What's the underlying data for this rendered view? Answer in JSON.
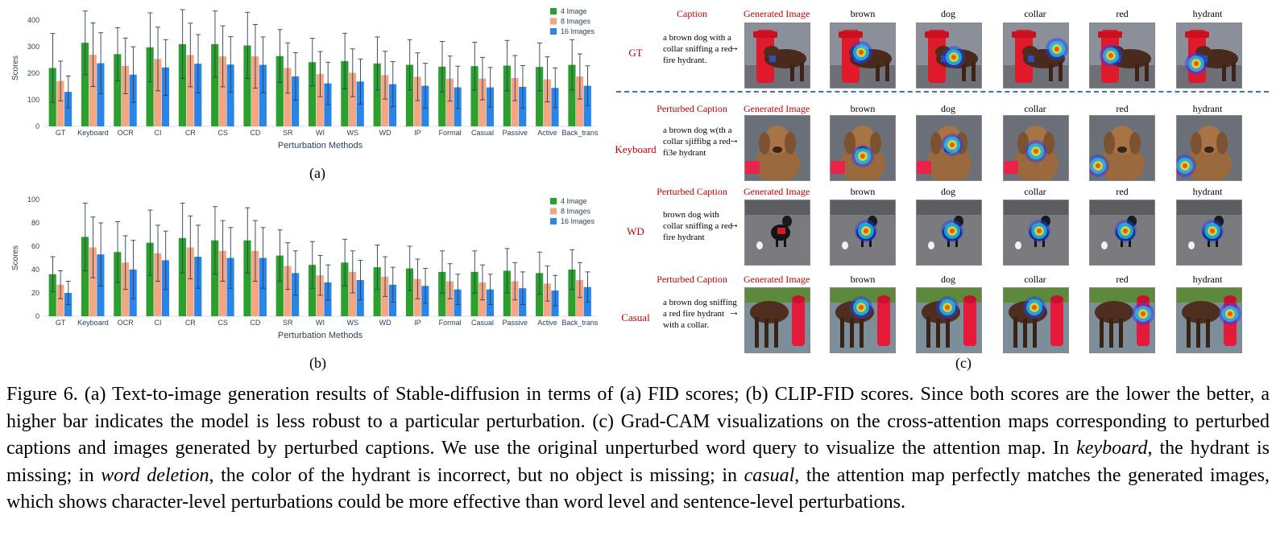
{
  "chart_data": [
    {
      "type": "bar",
      "title": "",
      "xlabel": "Perturbation Methods",
      "ylabel": "Scores",
      "ylim": [
        0,
        440
      ],
      "yticks": [
        0,
        100,
        200,
        300,
        400
      ],
      "grid": false,
      "legend": "top-right",
      "categories": [
        "GT",
        "Keyboard",
        "OCR",
        "CI",
        "CR",
        "CS",
        "CD",
        "SR",
        "WI",
        "WS",
        "WD",
        "IP",
        "Formal",
        "Casual",
        "Passive",
        "Active",
        "Back_trans"
      ],
      "series": [
        {
          "name": "4 Image",
          "color": "#2ca02c",
          "values": [
            220,
            315,
            272,
            298,
            310,
            310,
            305,
            265,
            242,
            246,
            237,
            232,
            225,
            227,
            229,
            224,
            232
          ],
          "errors": [
            130,
            120,
            100,
            130,
            130,
            125,
            125,
            100,
            90,
            105,
            100,
            95,
            95,
            90,
            95,
            90,
            95
          ]
        },
        {
          "name": "8 Images",
          "color": "#f4a582",
          "values": [
            171,
            270,
            228,
            254,
            269,
            264,
            264,
            220,
            197,
            202,
            193,
            187,
            180,
            180,
            182,
            177,
            188
          ],
          "errors": [
            75,
            120,
            105,
            120,
            120,
            115,
            120,
            95,
            85,
            90,
            90,
            90,
            85,
            80,
            85,
            85,
            85
          ]
        },
        {
          "name": "16 Images",
          "color": "#2a85e8",
          "values": [
            130,
            238,
            195,
            222,
            236,
            233,
            232,
            188,
            162,
            169,
            159,
            153,
            147,
            147,
            149,
            145,
            153
          ],
          "errors": [
            60,
            115,
            105,
            105,
            110,
            105,
            105,
            90,
            80,
            85,
            85,
            85,
            80,
            75,
            80,
            75,
            75
          ]
        }
      ]
    },
    {
      "type": "bar",
      "title": "",
      "xlabel": "Perturbation Methods",
      "ylabel": "Scores",
      "ylim": [
        0,
        100
      ],
      "yticks": [
        0,
        20,
        40,
        60,
        80,
        100
      ],
      "grid": false,
      "legend": "top-right",
      "categories": [
        "GT",
        "Keyboard",
        "OCR",
        "CI",
        "CR",
        "CS",
        "CD",
        "SR",
        "WI",
        "WS",
        "WD",
        "IP",
        "Formal",
        "Casual",
        "Passive",
        "Active",
        "Back_trans"
      ],
      "series": [
        {
          "name": "4 Image",
          "color": "#2ca02c",
          "values": [
            36,
            68,
            55,
            63,
            67,
            65,
            65,
            52,
            44,
            46,
            42,
            41,
            38,
            38,
            39,
            37,
            40
          ],
          "errors": [
            15,
            29,
            26,
            28,
            30,
            29,
            28,
            22,
            20,
            20,
            19,
            19,
            18,
            18,
            19,
            18,
            17
          ]
        },
        {
          "name": "8 Images",
          "color": "#f4a582",
          "values": [
            27,
            59,
            46,
            54,
            59,
            56,
            56,
            43,
            35,
            38,
            34,
            32,
            30,
            29,
            30,
            28,
            31
          ],
          "errors": [
            12,
            26,
            23,
            24,
            27,
            26,
            26,
            20,
            17,
            18,
            17,
            17,
            15,
            15,
            16,
            15,
            15
          ]
        },
        {
          "name": "16 Images",
          "color": "#2a85e8",
          "values": [
            20,
            53,
            40,
            48,
            51,
            50,
            50,
            37,
            29,
            31,
            27,
            26,
            23,
            23,
            24,
            22,
            25
          ],
          "errors": [
            10,
            27,
            25,
            25,
            27,
            26,
            26,
            19,
            15,
            17,
            15,
            15,
            13,
            13,
            14,
            13,
            13
          ]
        }
      ]
    }
  ],
  "panel_labels": {
    "a": "(a)",
    "b": "(b)",
    "c": "(c)"
  },
  "panel_c": {
    "column_headers": [
      "Caption",
      "Generated Image",
      "brown",
      "dog",
      "collar",
      "red",
      "hydrant"
    ],
    "perturbed_caption_header": "Perturbed Caption",
    "rows": [
      {
        "label": "GT",
        "caption": "a brown dog with a collar sniffing a red fire hydrant.",
        "scene": "hydrant-red"
      },
      {
        "label": "Keyboard",
        "caption": "a brown dog w(th a collar sjiffibg a red fi3e hydrant",
        "scene": "dog-portrait"
      },
      {
        "label": "WD",
        "caption": "brown dog with collar sniffing a red fire hydrant",
        "scene": "dark-dog"
      },
      {
        "label": "Casual",
        "caption": "a brown dog sniffing a red fire hydrant with a collar.",
        "scene": "dog-hydrant-grass"
      }
    ],
    "heat_focus": {
      "GT": [
        "dog-neck",
        "dog-body",
        "hydrant",
        "hydrant-all",
        "hydrant-body"
      ],
      "Keyboard": [
        "dog-chest",
        "dog-head",
        "dog-collar",
        "left-cloth",
        "left-cloth"
      ],
      "WD": [
        "dog-center",
        "dog-center",
        "dog-center",
        "dog-center",
        "dog-center"
      ],
      "Casual": [
        "dog-back",
        "dog-back",
        "dog-back",
        "hydrant",
        "hydrant"
      ]
    }
  },
  "figure_caption": {
    "p1": "Figure 6.  (a) Text-to-image generation results of Stable-diffusion in terms of (a) FID scores; (b) CLIP-FID scores.  Since both scores are the lower the better, a higher bar indicates the model is less robust to a particular perturbation.  (c) Grad-CAM visualizations on the cross-attention maps corresponding to perturbed captions and images generated by perturbed captions.  We use the original unperturbed word query to visualize the attention map.  In ",
    "em1": "keyboard",
    "p2": ", the hydrant is missing; in ",
    "em2": "word deletion",
    "p3": ", the color of the hydrant is incorrect, but no object is missing; in ",
    "em3": "casual",
    "p4": ", the attention map perfectly matches the generated images, which shows character-level perturbations could be more effective than word level and sentence-level perturbations."
  }
}
